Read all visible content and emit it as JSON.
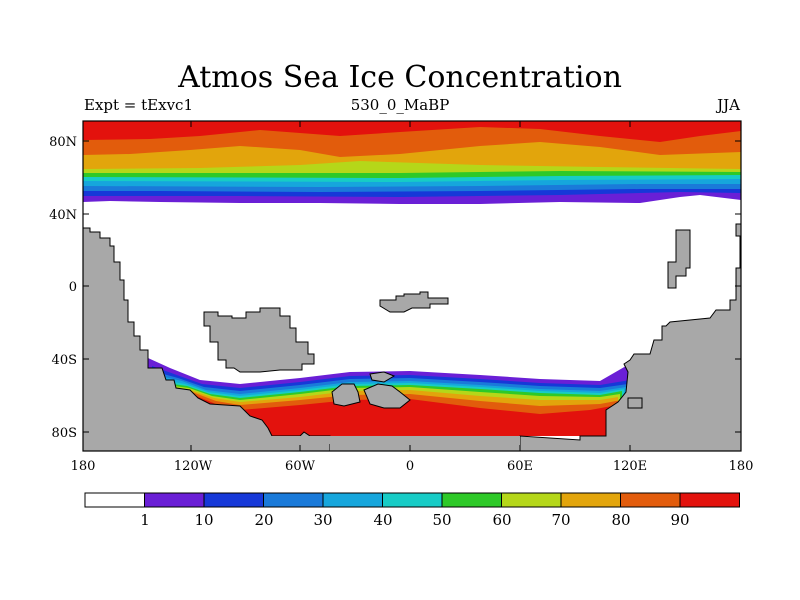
{
  "title": "Atmos Sea Ice Concentration",
  "left_subtitle": "Expt = tExvc1",
  "center_subtitle": "530_0_MaBP",
  "right_subtitle": "JJA",
  "lat_ticks": [
    "80N",
    "40N",
    "0",
    "40S",
    "80S"
  ],
  "lon_ticks": [
    "180",
    "120W",
    "60W",
    "0",
    "60E",
    "120E",
    "180"
  ],
  "colorbar": {
    "labels": [
      "1",
      "10",
      "20",
      "30",
      "40",
      "50",
      "60",
      "70",
      "80",
      "90"
    ],
    "colors": [
      "#ffffff",
      "#6a1fd6",
      "#1638d8",
      "#1a7ad9",
      "#16a6dc",
      "#17ccc6",
      "#2ec928",
      "#b5d719",
      "#e2a50c",
      "#e25c0c",
      "#e3120d"
    ]
  },
  "land_color": "#a8a8a8"
}
